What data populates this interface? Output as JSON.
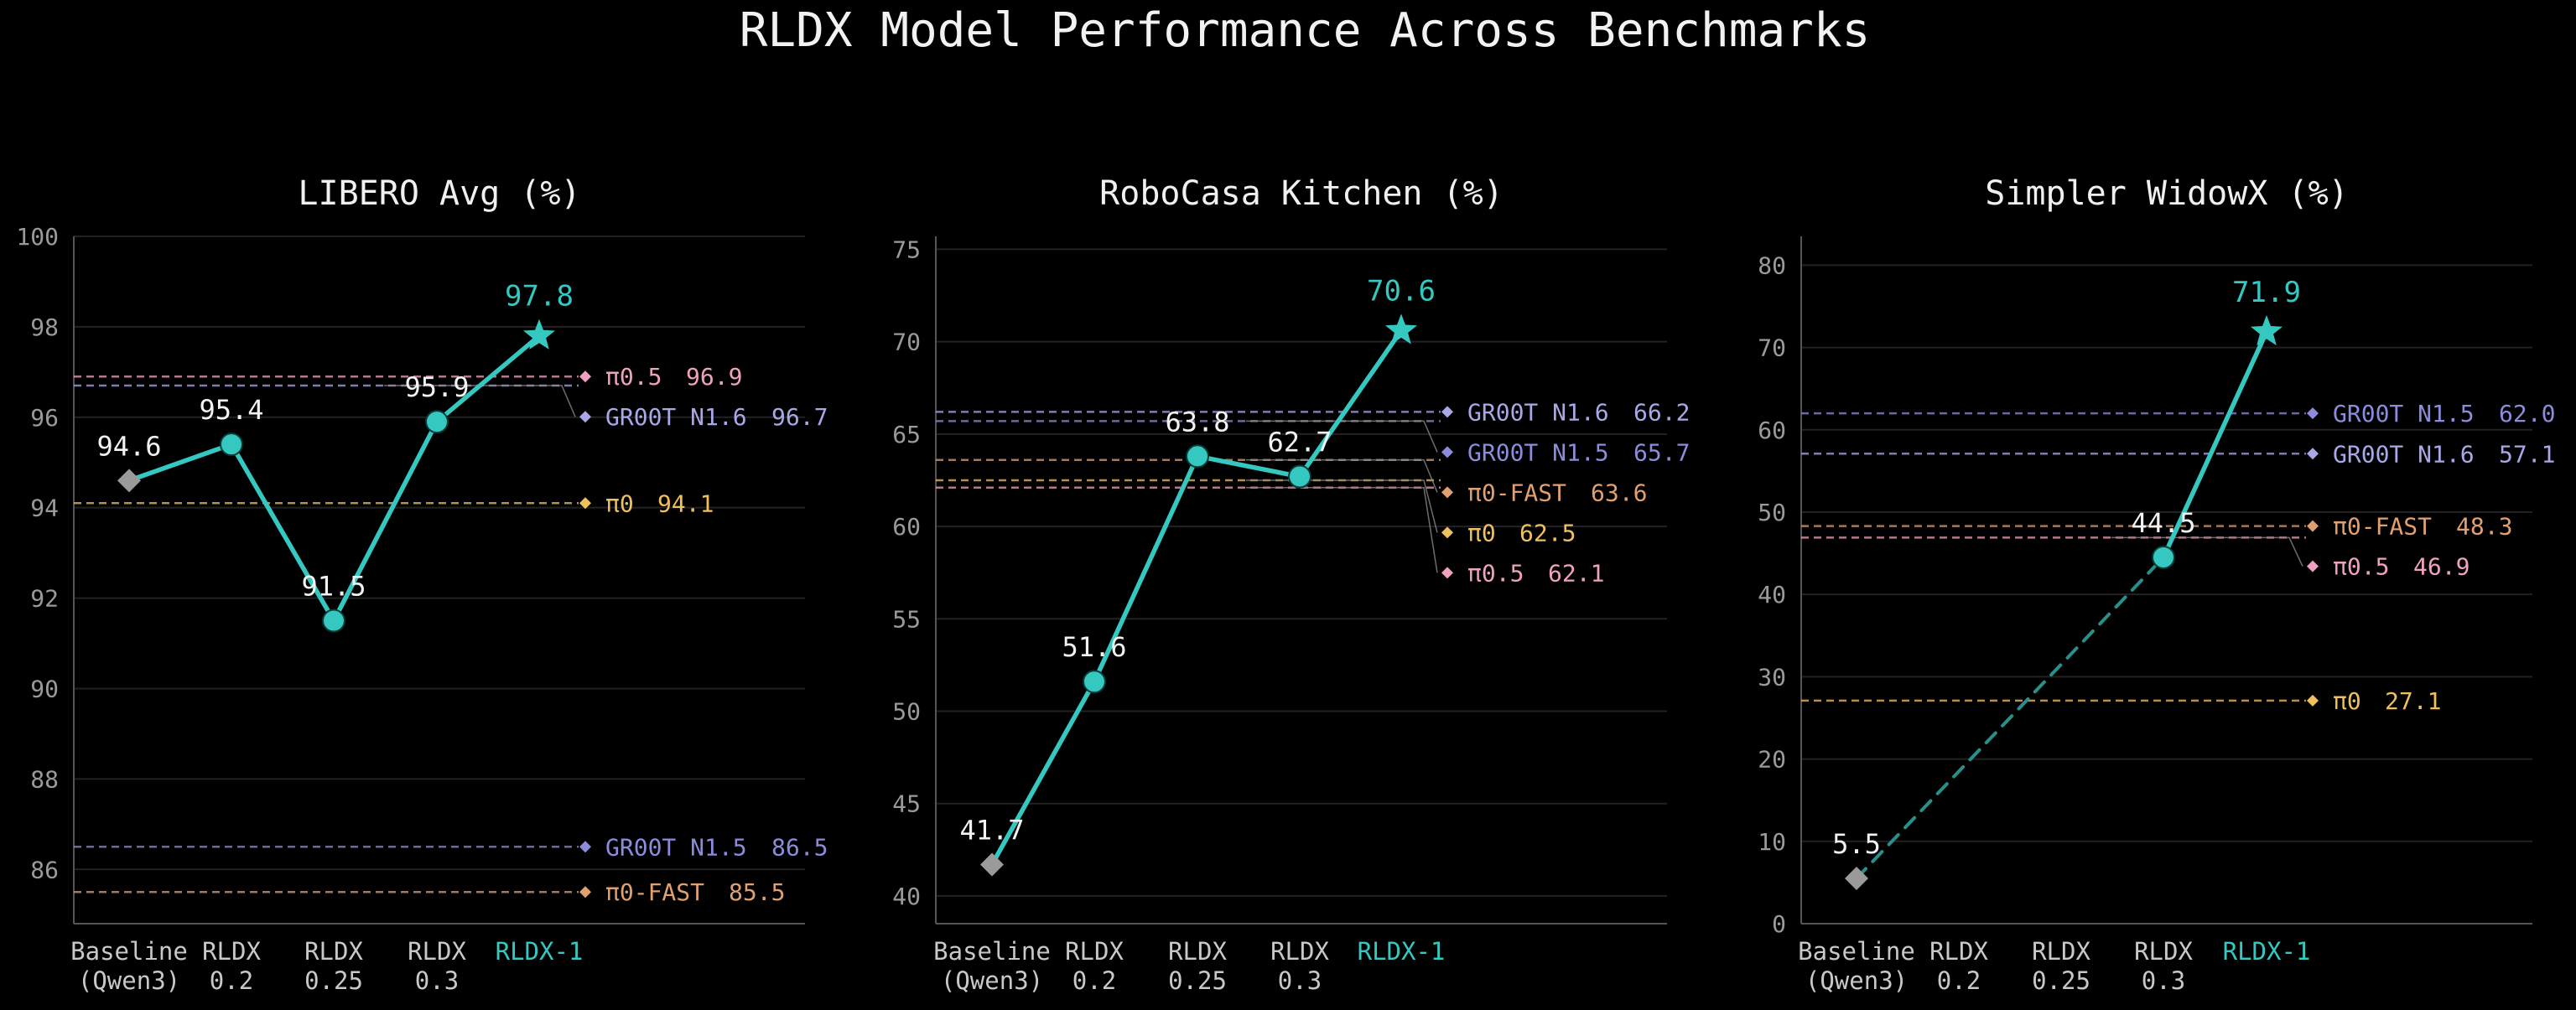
{
  "figure_title": "RLDX Model Performance Across Benchmarks",
  "colors": {
    "rldx": "#35c8c0",
    "baseline": "#9a9a9a",
    "pi0": "#f0c060",
    "pi0_fast": "#e0a070",
    "pi0_5": "#f0a0c0",
    "gr00t_n16": "#a8a8e8",
    "gr00t_n15": "#8c8cdc"
  },
  "chart_data": [
    {
      "type": "line",
      "title": "LIBERO Avg (%)",
      "ylim": [
        84.8,
        100
      ],
      "yticks": [
        86,
        88,
        90,
        92,
        94,
        96,
        98,
        100
      ],
      "grid": true,
      "categories": [
        {
          "line1": "Baseline",
          "line2": "(Qwen3)"
        },
        {
          "line1": "RLDX",
          "line2": "0.2"
        },
        {
          "line1": "RLDX",
          "line2": "0.25"
        },
        {
          "line1": "RLDX",
          "line2": "0.3"
        },
        {
          "line1": "RLDX-1",
          "line2": ""
        }
      ],
      "points": [
        {
          "label": "94.6",
          "value": 94.6,
          "marker": "diamond"
        },
        {
          "label": "95.4",
          "value": 95.4,
          "marker": "circle"
        },
        {
          "label": "91.5",
          "value": 91.5,
          "marker": "circle"
        },
        {
          "label": "95.9",
          "value": 95.9,
          "marker": "circle"
        },
        {
          "label": "97.8",
          "value": 97.8,
          "marker": "star"
        }
      ],
      "first_segment_dashed": false,
      "references": [
        {
          "name": "π0.5",
          "value": 96.9,
          "label": "96.9",
          "color": "pi0_5"
        },
        {
          "name": "GR00T N1.6",
          "value": 96.7,
          "label": "96.7",
          "color": "gr00t_n16"
        },
        {
          "name": "π0",
          "value": 94.1,
          "label": "94.1",
          "color": "pi0"
        },
        {
          "name": "GR00T N1.5",
          "value": 86.5,
          "label": "86.5",
          "color": "gr00t_n15"
        },
        {
          "name": "π0-FAST",
          "value": 85.5,
          "label": "85.5",
          "color": "pi0_fast"
        }
      ]
    },
    {
      "type": "line",
      "title": "RoboCasa Kitchen (%)",
      "ylim": [
        38.5,
        75.7
      ],
      "yticks": [
        40,
        45,
        50,
        55,
        60,
        65,
        70,
        75
      ],
      "grid": true,
      "categories": [
        {
          "line1": "Baseline",
          "line2": "(Qwen3)"
        },
        {
          "line1": "RLDX",
          "line2": "0.2"
        },
        {
          "line1": "RLDX",
          "line2": "0.25"
        },
        {
          "line1": "RLDX",
          "line2": "0.3"
        },
        {
          "line1": "RLDX-1",
          "line2": ""
        }
      ],
      "points": [
        {
          "label": "41.7",
          "value": 41.7,
          "marker": "diamond"
        },
        {
          "label": "51.6",
          "value": 51.6,
          "marker": "circle"
        },
        {
          "label": "63.8",
          "value": 63.8,
          "marker": "circle"
        },
        {
          "label": "62.7",
          "value": 62.7,
          "marker": "circle"
        },
        {
          "label": "70.6",
          "value": 70.6,
          "marker": "star"
        }
      ],
      "first_segment_dashed": false,
      "references": [
        {
          "name": "GR00T N1.6",
          "value": 66.2,
          "label": "66.2",
          "color": "gr00t_n16"
        },
        {
          "name": "GR00T N1.5",
          "value": 65.7,
          "label": "65.7",
          "color": "gr00t_n15"
        },
        {
          "name": "π0-FAST",
          "value": 63.6,
          "label": "63.6",
          "color": "pi0_fast"
        },
        {
          "name": "π0",
          "value": 62.5,
          "label": "62.5",
          "color": "pi0"
        },
        {
          "name": "π0.5",
          "value": 62.1,
          "label": "62.1",
          "color": "pi0_5"
        }
      ]
    },
    {
      "type": "line",
      "title": "Simpler WidowX (%)",
      "ylim": [
        0,
        83.5
      ],
      "yticks": [
        0,
        10,
        20,
        30,
        40,
        50,
        60,
        70,
        80
      ],
      "grid": true,
      "categories": [
        {
          "line1": "Baseline",
          "line2": "(Qwen3)"
        },
        {
          "line1": "RLDX",
          "line2": "0.2"
        },
        {
          "line1": "RLDX",
          "line2": "0.25"
        },
        {
          "line1": "RLDX",
          "line2": "0.3"
        },
        {
          "line1": "RLDX-1",
          "line2": ""
        }
      ],
      "points": [
        {
          "label": "5.5",
          "value": 5.5,
          "marker": "diamond"
        },
        {
          "label": "44.5",
          "value": 44.5,
          "marker": "circle"
        },
        {
          "label": "71.9",
          "value": 71.9,
          "marker": "star"
        }
      ],
      "point_categories": [
        0,
        3,
        4
      ],
      "first_segment_dashed": true,
      "references": [
        {
          "name": "GR00T N1.5",
          "value": 62.0,
          "label": "62.0",
          "color": "gr00t_n15"
        },
        {
          "name": "GR00T N1.6",
          "value": 57.1,
          "label": "57.1",
          "color": "gr00t_n16"
        },
        {
          "name": "π0-FAST",
          "value": 48.3,
          "label": "48.3",
          "color": "pi0_fast"
        },
        {
          "name": "π0.5",
          "value": 46.9,
          "label": "46.9",
          "color": "pi0_5"
        },
        {
          "name": "π0",
          "value": 27.1,
          "label": "27.1",
          "color": "pi0"
        }
      ]
    }
  ]
}
